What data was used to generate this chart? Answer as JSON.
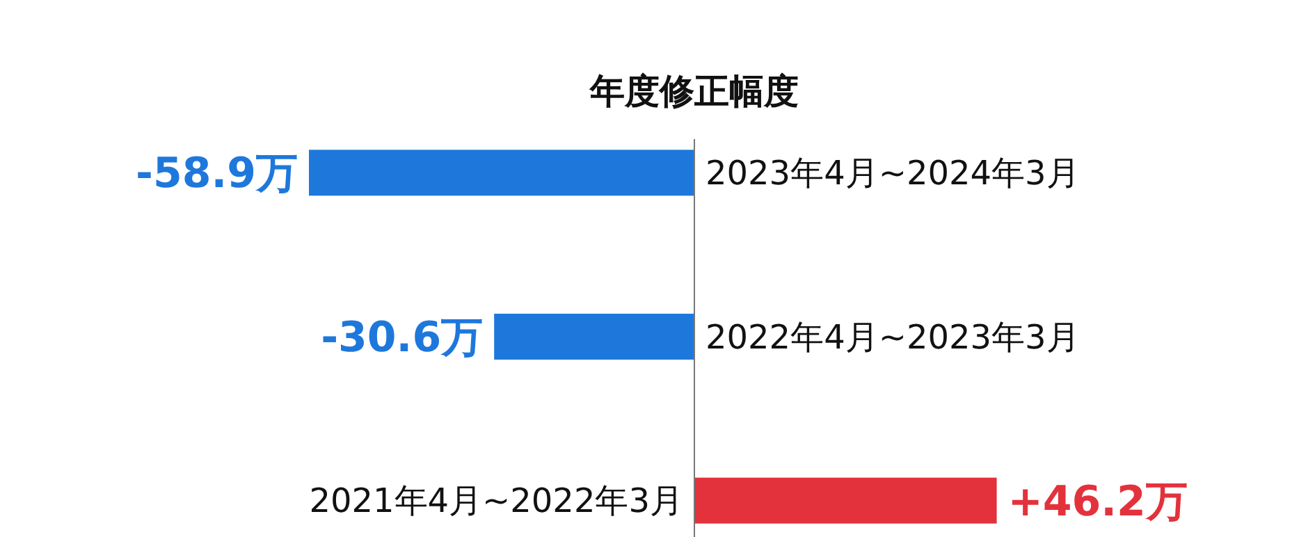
{
  "chart_data": {
    "type": "bar",
    "orientation": "horizontal",
    "title": "年度修正幅度",
    "categories": [
      "2023年4月~2024年3月",
      "2022年4月~2023年3月",
      "2021年4月~2022年3月"
    ],
    "values": [
      -58.9,
      -30.6,
      46.2
    ],
    "colors": [
      "#1e78dc",
      "#1e78dc",
      "#e3323c"
    ],
    "value_labels": [
      "-58.9万",
      "-30.6万",
      "+46.2万"
    ]
  }
}
